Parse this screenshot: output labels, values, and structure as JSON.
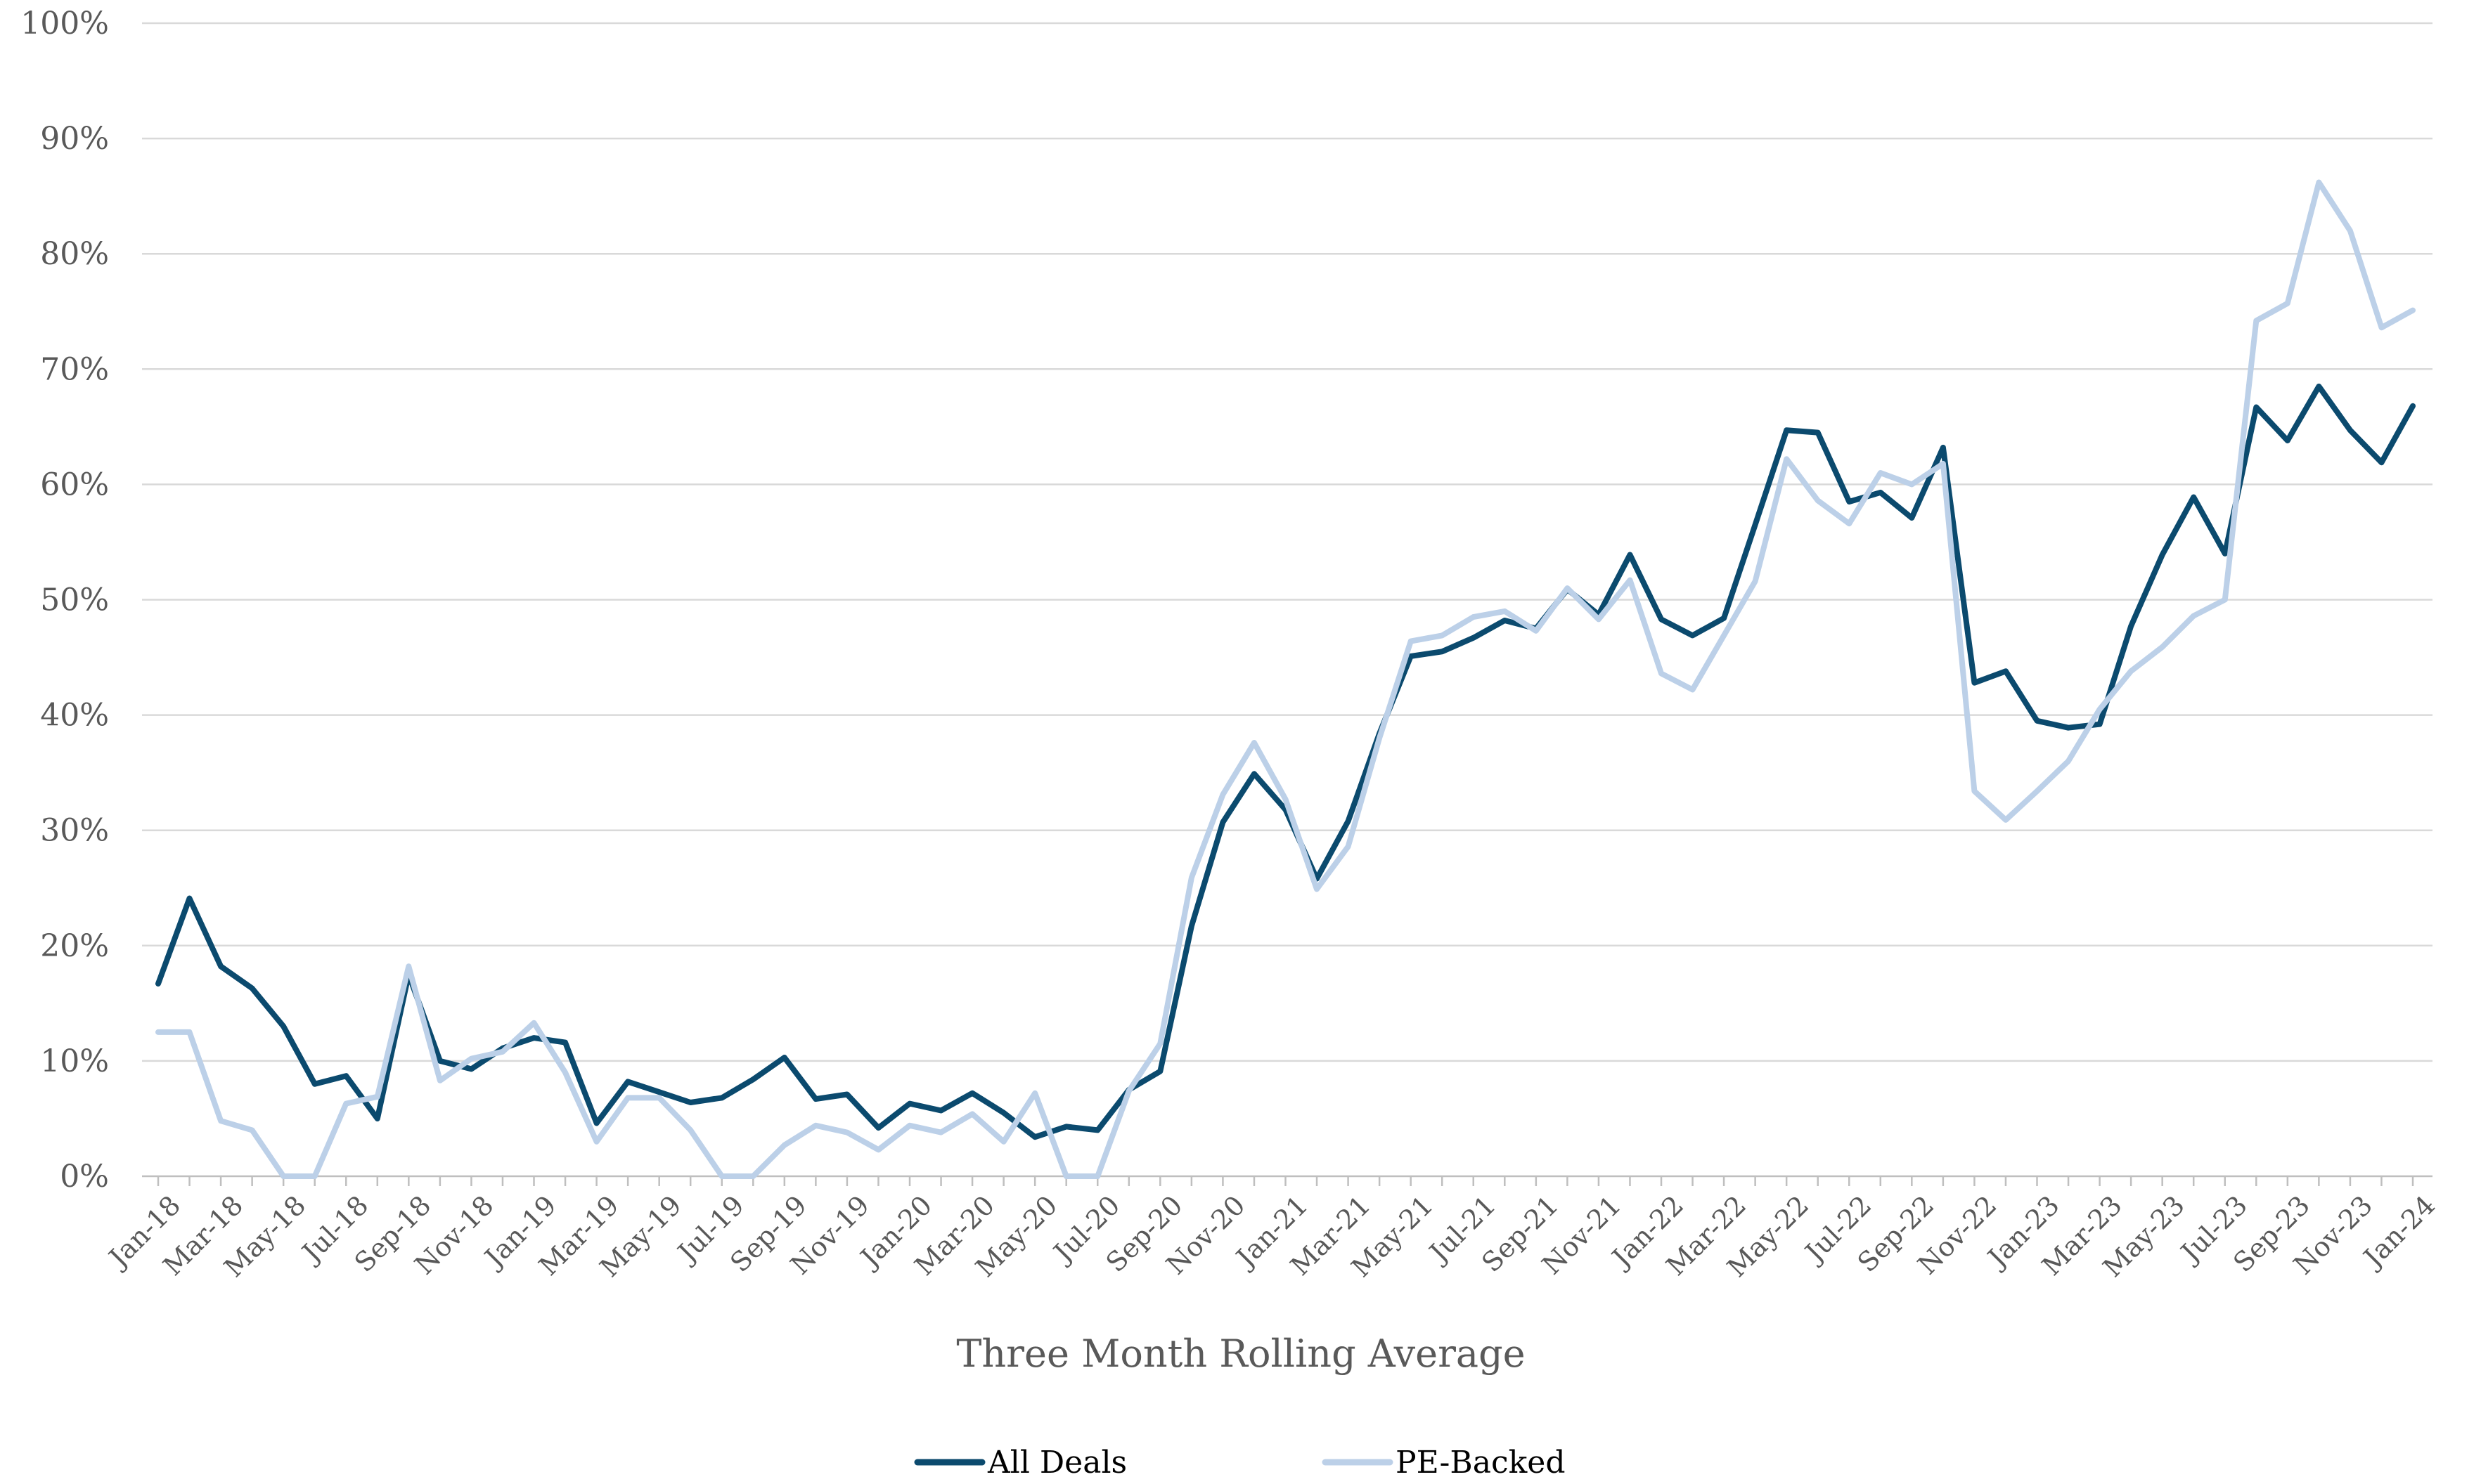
{
  "chart_data": {
    "type": "line",
    "xlabel": "Three Month Rolling Average",
    "ylim": [
      0,
      100
    ],
    "y_ticks": [
      "0%",
      "10%",
      "20%",
      "30%",
      "40%",
      "50%",
      "60%",
      "70%",
      "80%",
      "90%",
      "100%"
    ],
    "x_tick_labels": [
      "Jan-18",
      "Mar-18",
      "May-18",
      "Jul-18",
      "Sep-18",
      "Nov-18",
      "Jan-19",
      "Mar-19",
      "May-19",
      "Jul-19",
      "Sep-19",
      "Nov-19",
      "Jan-20",
      "Mar-20",
      "May-20",
      "Jul-20",
      "Sep-20",
      "Nov-20",
      "Jan-21",
      "Mar-21",
      "May-21",
      "Jul-21",
      "Sep-21",
      "Nov-21",
      "Jan-22",
      "Mar-22",
      "May-22",
      "Jul-22",
      "Sep-22",
      "Nov-22",
      "Jan-23",
      "Mar-23",
      "May-23",
      "Jul-23",
      "Sep-23",
      "Nov-23",
      "Jan-24"
    ],
    "x": [
      "Jan-18",
      "Feb-18",
      "Mar-18",
      "Apr-18",
      "May-18",
      "Jun-18",
      "Jul-18",
      "Aug-18",
      "Sep-18",
      "Oct-18",
      "Nov-18",
      "Dec-18",
      "Jan-19",
      "Feb-19",
      "Mar-19",
      "Apr-19",
      "May-19",
      "Jun-19",
      "Jul-19",
      "Aug-19",
      "Sep-19",
      "Oct-19",
      "Nov-19",
      "Dec-19",
      "Jan-20",
      "Feb-20",
      "Mar-20",
      "Apr-20",
      "May-20",
      "Jun-20",
      "Jul-20",
      "Aug-20",
      "Sep-20",
      "Oct-20",
      "Nov-20",
      "Dec-20",
      "Jan-21",
      "Feb-21",
      "Mar-21",
      "Apr-21",
      "May-21",
      "Jun-21",
      "Jul-21",
      "Aug-21",
      "Sep-21",
      "Oct-21",
      "Nov-21",
      "Dec-21",
      "Jan-22",
      "Feb-22",
      "Mar-22",
      "Apr-22",
      "May-22",
      "Jun-22",
      "Jul-22",
      "Aug-22",
      "Sep-22",
      "Oct-22",
      "Nov-22",
      "Dec-22",
      "Jan-23",
      "Feb-23",
      "Mar-23",
      "Apr-23",
      "May-23",
      "Jun-23",
      "Jul-23",
      "Aug-23",
      "Sep-23",
      "Oct-23",
      "Nov-23",
      "Dec-23",
      "Jan-24"
    ],
    "series": [
      {
        "name": "All Deals",
        "color": "#0b4a6e",
        "values": [
          16.7,
          24.1,
          18.2,
          16.3,
          13.0,
          8.0,
          8.7,
          5.0,
          17.5,
          10.0,
          9.3,
          11.1,
          12.0,
          11.6,
          4.6,
          8.2,
          7.3,
          6.4,
          6.8,
          8.4,
          10.3,
          6.7,
          7.1,
          4.2,
          6.3,
          5.7,
          7.2,
          5.5,
          3.4,
          4.3,
          4.0,
          7.5,
          9.1,
          21.7,
          30.7,
          34.9,
          31.8,
          25.8,
          30.8,
          38.4,
          45.1,
          45.5,
          46.7,
          48.2,
          47.5,
          50.9,
          48.7,
          53.9,
          48.3,
          46.9,
          48.4,
          56.5,
          64.7,
          64.5,
          58.5,
          59.3,
          57.1,
          63.2,
          42.8,
          43.8,
          39.5,
          38.9,
          39.2,
          47.7,
          53.9,
          58.9,
          54.0,
          66.7,
          63.8,
          68.5,
          64.7,
          61.9,
          66.8
        ]
      },
      {
        "name": "PE-Backed",
        "color": "#bcd0e8",
        "values": [
          12.5,
          12.5,
          4.8,
          4.0,
          0.0,
          0.0,
          6.3,
          6.9,
          18.2,
          8.3,
          10.2,
          10.8,
          13.3,
          9.0,
          3.0,
          6.8,
          6.8,
          4.0,
          0.0,
          0.0,
          2.7,
          4.4,
          3.8,
          2.3,
          4.4,
          3.8,
          5.4,
          3.0,
          7.2,
          0.0,
          0.0,
          7.4,
          11.5,
          25.9,
          33.1,
          37.6,
          32.7,
          24.9,
          28.6,
          38.0,
          46.4,
          46.9,
          48.5,
          49.0,
          47.3,
          51.0,
          48.3,
          51.7,
          43.6,
          42.2,
          46.9,
          51.6,
          62.2,
          58.6,
          56.6,
          61.0,
          60.0,
          61.8,
          33.4,
          30.9,
          33.4,
          36.0,
          40.5,
          43.8,
          45.9,
          48.6,
          50.0,
          74.2,
          75.7,
          86.2,
          82.0,
          73.6,
          75.1
        ]
      }
    ],
    "legend": {
      "placement": "bottom-center",
      "entries": [
        "All Deals",
        "PE-Backed"
      ]
    },
    "grid": true
  }
}
